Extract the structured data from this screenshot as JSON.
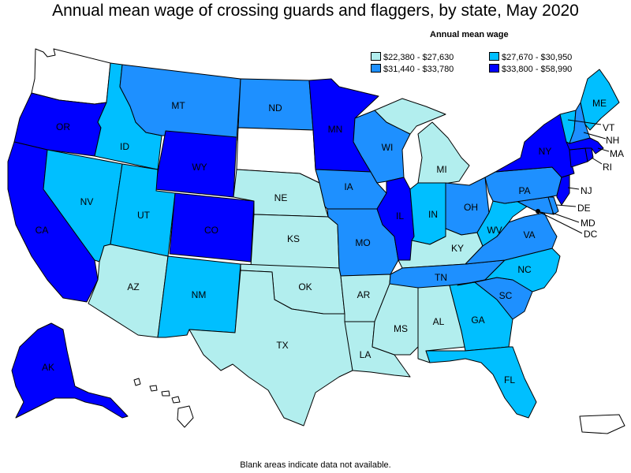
{
  "title": "Annual mean wage of crossing guards and flaggers, by state, May 2020",
  "legend": {
    "title": "Annual mean wage",
    "items": [
      {
        "label": "$22,380 - $27,630",
        "color": "#b2eeee"
      },
      {
        "label": "$27,670 - $30,950",
        "color": "#00bfff"
      },
      {
        "label": "$31,440 - $33,780",
        "color": "#1e90ff"
      },
      {
        "label": "$33,800 - $58,990",
        "color": "#0000ff"
      }
    ]
  },
  "footnote": "Blank areas indicate data not available.",
  "colors": {
    "none": "#ffffff",
    "c1": "#b2eeee",
    "c2": "#00bfff",
    "c3": "#1e90ff",
    "c4": "#0000ff"
  },
  "states": {
    "WA": {
      "label": "",
      "cls": "none"
    },
    "OR": {
      "label": "OR",
      "cls": "c4"
    },
    "CA": {
      "label": "CA",
      "cls": "c4"
    },
    "ID": {
      "label": "ID",
      "cls": "c2"
    },
    "NV": {
      "label": "NV",
      "cls": "c2"
    },
    "MT": {
      "label": "MT",
      "cls": "c3"
    },
    "WY": {
      "label": "WY",
      "cls": "c4"
    },
    "UT": {
      "label": "UT",
      "cls": "c2"
    },
    "AZ": {
      "label": "AZ",
      "cls": "c1"
    },
    "CO": {
      "label": "CO",
      "cls": "c4"
    },
    "NM": {
      "label": "NM",
      "cls": "c2"
    },
    "ND": {
      "label": "ND",
      "cls": "c3"
    },
    "SD": {
      "label": "",
      "cls": "none"
    },
    "NE": {
      "label": "NE",
      "cls": "c1"
    },
    "KS": {
      "label": "KS",
      "cls": "c1"
    },
    "OK": {
      "label": "OK",
      "cls": "c1"
    },
    "TX": {
      "label": "TX",
      "cls": "c1"
    },
    "MN": {
      "label": "MN",
      "cls": "c4"
    },
    "IA": {
      "label": "IA",
      "cls": "c3"
    },
    "MO": {
      "label": "MO",
      "cls": "c3"
    },
    "AR": {
      "label": "AR",
      "cls": "c1"
    },
    "LA": {
      "label": "LA",
      "cls": "c1"
    },
    "WI": {
      "label": "WI",
      "cls": "c3"
    },
    "IL": {
      "label": "IL",
      "cls": "c4"
    },
    "MI": {
      "label": "MI",
      "cls": "c1"
    },
    "IN": {
      "label": "IN",
      "cls": "c2"
    },
    "OH": {
      "label": "OH",
      "cls": "c3"
    },
    "KY": {
      "label": "KY",
      "cls": "c1"
    },
    "TN": {
      "label": "TN",
      "cls": "c3"
    },
    "MS": {
      "label": "MS",
      "cls": "c1"
    },
    "AL": {
      "label": "AL",
      "cls": "c1"
    },
    "GA": {
      "label": "GA",
      "cls": "c2"
    },
    "FL": {
      "label": "FL",
      "cls": "c2"
    },
    "SC": {
      "label": "SC",
      "cls": "c3"
    },
    "NC": {
      "label": "NC",
      "cls": "c2"
    },
    "VA": {
      "label": "VA",
      "cls": "c3"
    },
    "WV": {
      "label": "WV",
      "cls": "c2"
    },
    "PA": {
      "label": "PA",
      "cls": "c3"
    },
    "NY": {
      "label": "NY",
      "cls": "c4"
    },
    "NJ": {
      "label": "NJ",
      "cls": "c4"
    },
    "DE": {
      "label": "DE",
      "cls": "c3"
    },
    "MD": {
      "label": "MD",
      "cls": "c3"
    },
    "DC": {
      "label": "DC",
      "cls": "c4"
    },
    "VT": {
      "label": "VT",
      "cls": "c2"
    },
    "NH": {
      "label": "NH",
      "cls": "c3"
    },
    "ME": {
      "label": "ME",
      "cls": "c2"
    },
    "MA": {
      "label": "MA",
      "cls": "c4"
    },
    "RI": {
      "label": "RI",
      "cls": "c4"
    },
    "CT": {
      "label": "",
      "cls": "c4"
    },
    "AK": {
      "label": "AK",
      "cls": "c4"
    },
    "HI": {
      "label": "",
      "cls": "none"
    },
    "PR": {
      "label": "",
      "cls": "none"
    }
  }
}
